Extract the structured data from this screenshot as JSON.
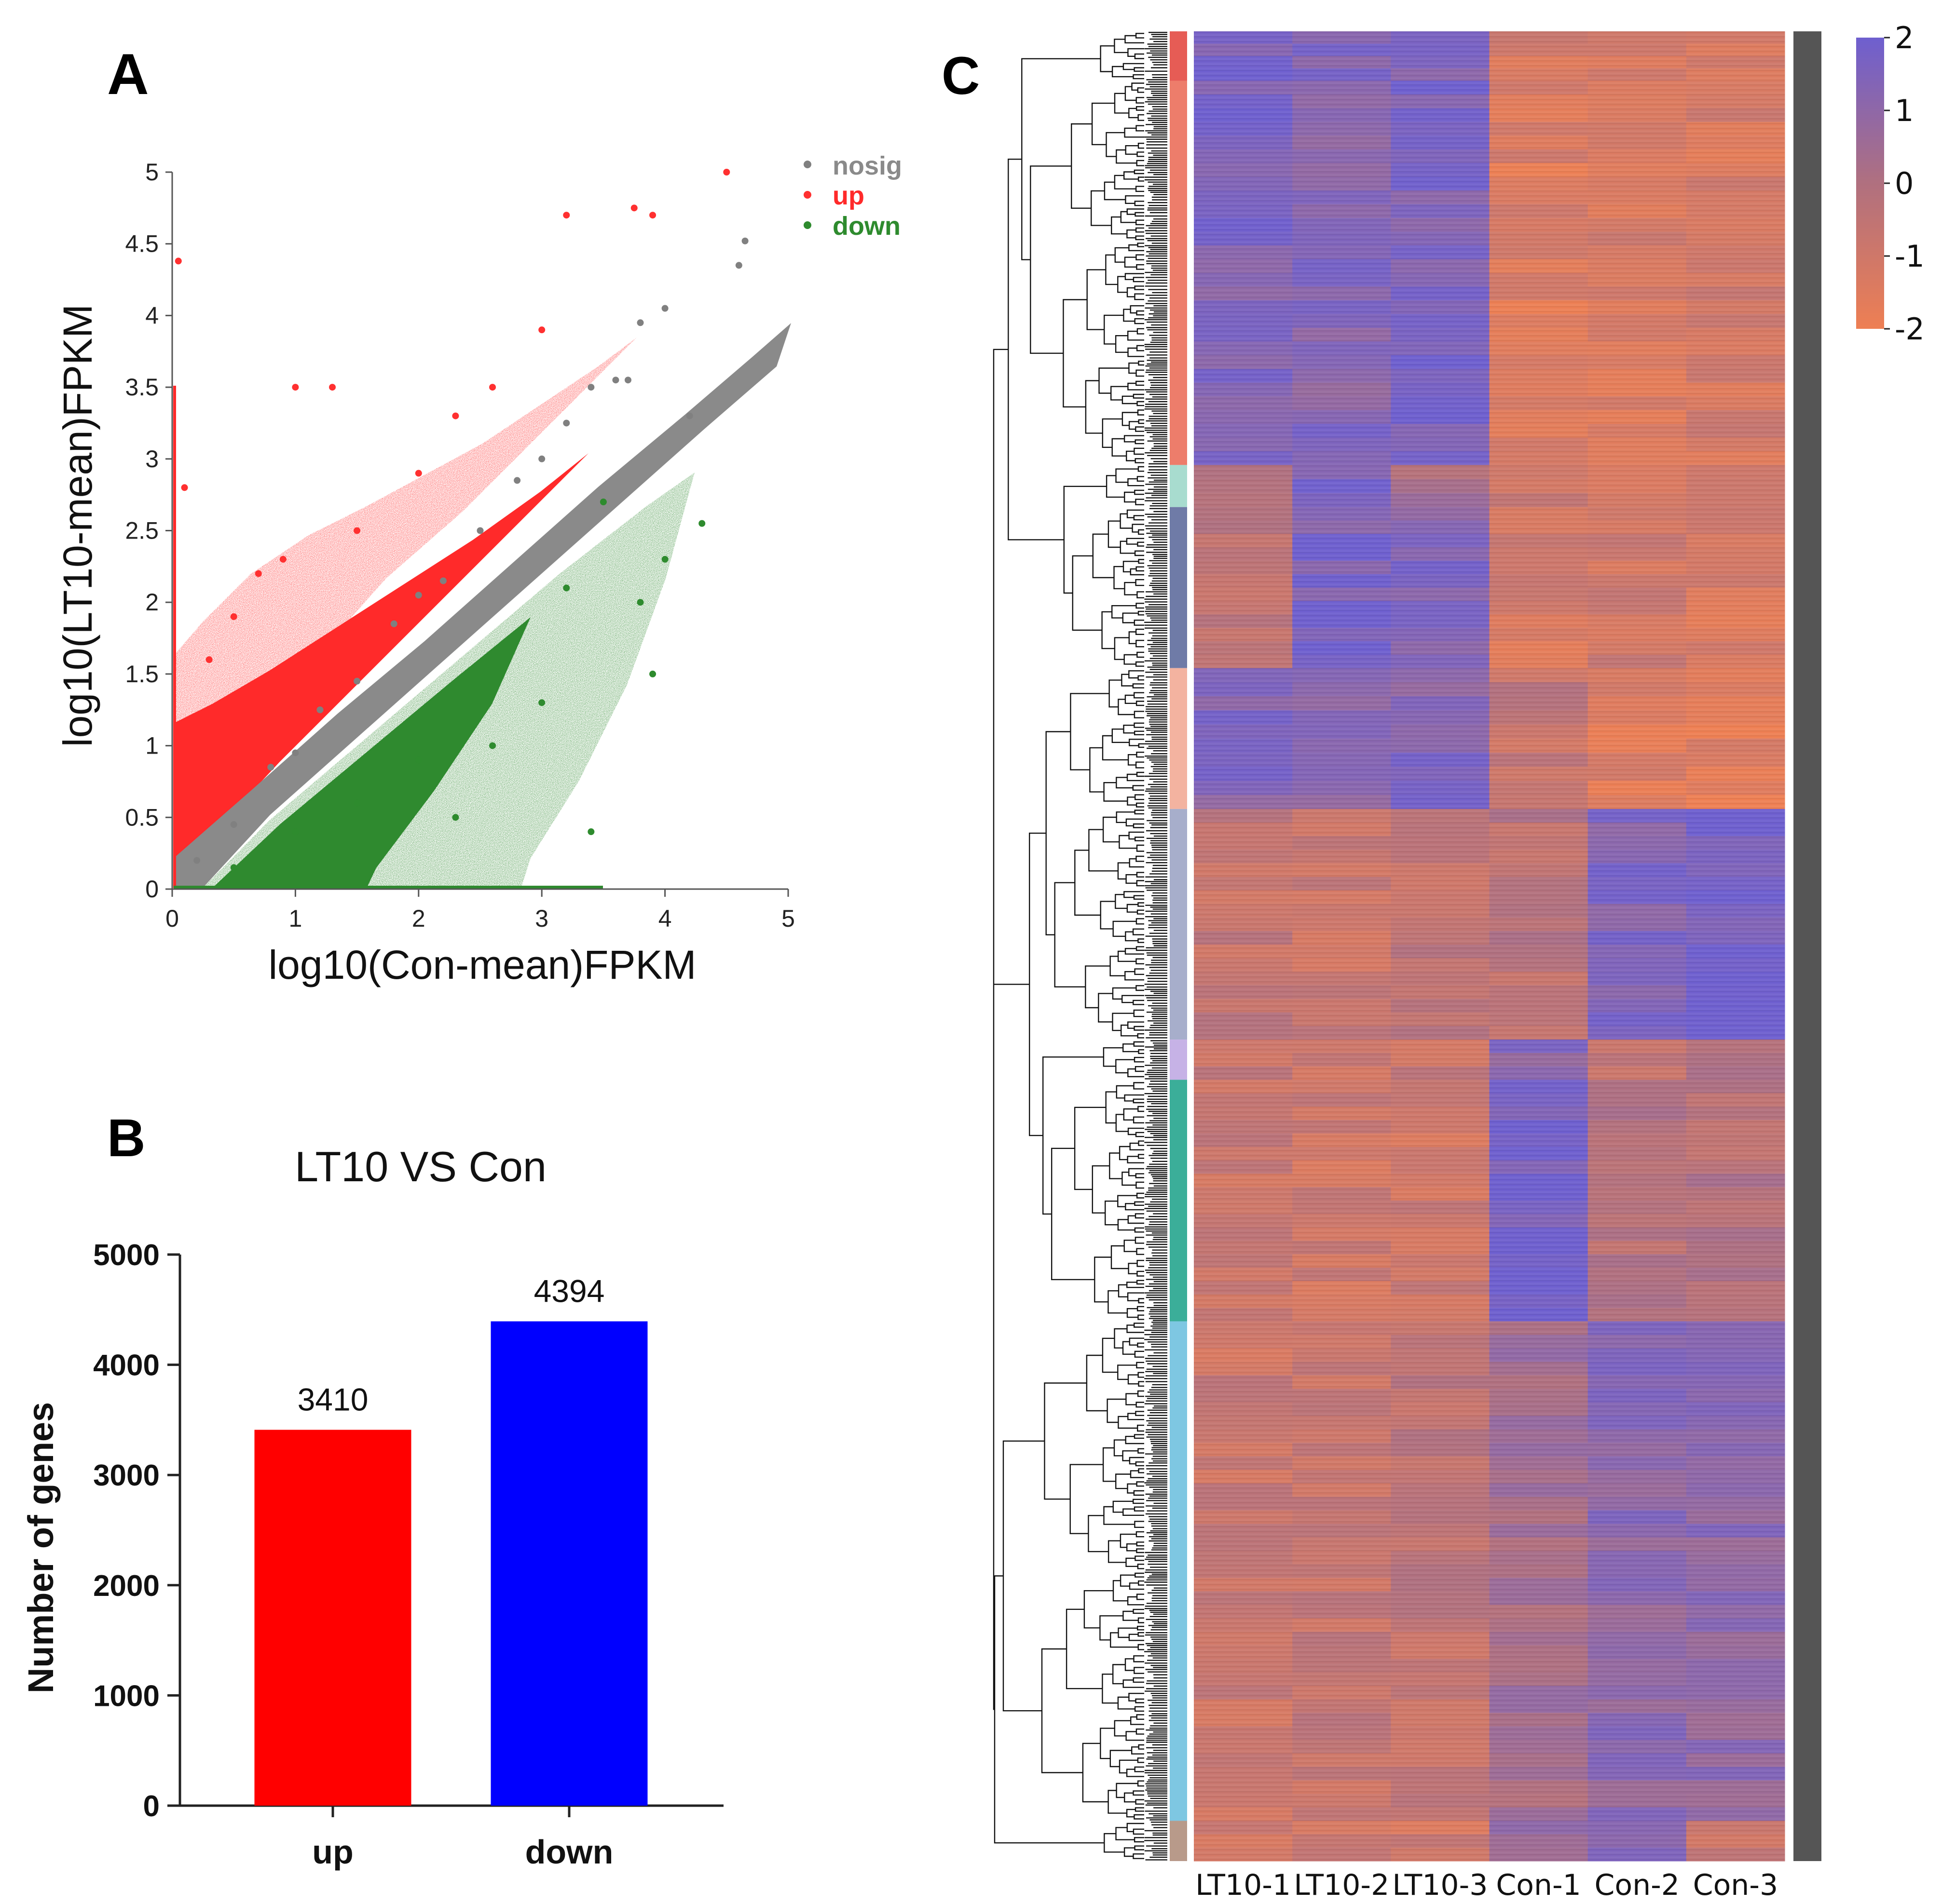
{
  "panels": {
    "A": {
      "letter": "A",
      "chart_data": {
        "type": "scatter",
        "xlabel": "log10(Con-mean)FPKM",
        "ylabel": "log10(LT10-mean)FPKM",
        "xlim": [
          0,
          5
        ],
        "ylim": [
          0,
          5
        ],
        "xticks": [
          "0",
          "1",
          "2",
          "3",
          "4",
          "5"
        ],
        "yticks": [
          "0",
          "0.5",
          "1",
          "1.5",
          "2",
          "2.5",
          "3",
          "3.5",
          "4",
          "4.5",
          "5"
        ],
        "legend_position": "top-right",
        "series": [
          {
            "name": "nosig",
            "color": "#808080",
            "points": [
              [
                0.2,
                0.2
              ],
              [
                0.5,
                0.45
              ],
              [
                0.8,
                0.85
              ],
              [
                1.0,
                0.95
              ],
              [
                1.2,
                1.25
              ],
              [
                1.5,
                1.45
              ],
              [
                1.8,
                1.85
              ],
              [
                2.0,
                2.05
              ],
              [
                2.2,
                2.15
              ],
              [
                2.5,
                2.5
              ],
              [
                2.8,
                2.85
              ],
              [
                3.0,
                3.0
              ],
              [
                3.2,
                3.25
              ],
              [
                3.4,
                3.5
              ],
              [
                3.6,
                3.55
              ],
              [
                3.8,
                3.95
              ],
              [
                4.0,
                4.05
              ],
              [
                4.6,
                4.35
              ],
              [
                4.65,
                4.52
              ],
              [
                4.2,
                3.3
              ],
              [
                3.7,
                3.55
              ]
            ]
          },
          {
            "name": "up",
            "color": "#ff3030",
            "points": [
              [
                0.05,
                4.38
              ],
              [
                0.1,
                2.8
              ],
              [
                0.3,
                1.6
              ],
              [
                0.5,
                1.9
              ],
              [
                0.7,
                2.2
              ],
              [
                0.9,
                2.3
              ],
              [
                1.0,
                3.5
              ],
              [
                1.3,
                3.5
              ],
              [
                1.5,
                2.5
              ],
              [
                2.0,
                2.9
              ],
              [
                2.3,
                3.3
              ],
              [
                2.6,
                3.5
              ],
              [
                3.0,
                3.9
              ],
              [
                3.2,
                4.7
              ],
              [
                3.75,
                4.75
              ],
              [
                3.9,
                4.7
              ],
              [
                4.5,
                5.0
              ]
            ]
          },
          {
            "name": "down",
            "color": "#2e8b2e",
            "points": [
              [
                0.5,
                0.15
              ],
              [
                1.0,
                0.4
              ],
              [
                1.5,
                0.6
              ],
              [
                2.0,
                0.9
              ],
              [
                2.3,
                0.5
              ],
              [
                2.6,
                1.0
              ],
              [
                3.0,
                1.3
              ],
              [
                3.2,
                2.1
              ],
              [
                3.4,
                0.4
              ],
              [
                3.5,
                2.7
              ],
              [
                3.8,
                2.0
              ],
              [
                3.9,
                1.5
              ],
              [
                4.0,
                2.3
              ],
              [
                4.3,
                2.55
              ]
            ]
          }
        ]
      }
    },
    "B": {
      "letter": "B",
      "chart_data": {
        "type": "bar",
        "title": "LT10 VS Con",
        "ylabel": "Number of genes",
        "categories": [
          "up",
          "down"
        ],
        "values": [
          3410,
          4394
        ],
        "value_labels": [
          "3410",
          "4394"
        ],
        "colors": [
          "#ff0000",
          "#0000ff"
        ],
        "ylim": [
          0,
          5000
        ],
        "yticks": [
          "0",
          "1000",
          "2000",
          "3000",
          "4000",
          "5000"
        ]
      }
    },
    "C": {
      "letter": "C",
      "chart_data": {
        "type": "heatmap",
        "columns": [
          "LT10-1",
          "LT10-2",
          "LT10-3",
          "Con-1",
          "Con-2",
          "Con-3"
        ],
        "color_scale": {
          "min": -2,
          "max": 2,
          "low_color": "#ee7f53",
          "mid_color": "#b0707f",
          "high_color": "#6e5fcf",
          "ticks": [
            "2",
            "1",
            "0",
            "-1",
            "-2"
          ]
        },
        "cluster_colors": [
          "#e65c55",
          "#ed7d6b",
          "#a8dccf",
          "#6f7ba7",
          "#f3b3a0",
          "#a7aecb",
          "#c6b2e6",
          "#3bae99",
          "#7ec7e2",
          "#b89a8a"
        ],
        "cluster_fractions": [
          0.027,
          0.21,
          0.023,
          0.088,
          0.077,
          0.126,
          0.022,
          0.132,
          0.273,
          0.022
        ],
        "block_values": [
          [
            1.6,
            1.4,
            1.5,
            -1.3,
            -1.2,
            -1.3
          ],
          [
            1.5,
            1.3,
            1.6,
            -1.4,
            -1.3,
            -1.2
          ],
          [
            -0.3,
            1.8,
            0.2,
            -1.0,
            -1.3,
            -0.8
          ],
          [
            -0.5,
            1.6,
            1.4,
            -1.2,
            -0.9,
            -1.3
          ],
          [
            1.3,
            1.2,
            1.3,
            -0.6,
            -1.4,
            -1.7
          ],
          [
            -0.6,
            -0.8,
            -0.5,
            -0.3,
            1.5,
            1.9
          ],
          [
            -0.7,
            -0.9,
            -0.8,
            1.3,
            -0.6,
            0.3
          ],
          [
            -0.8,
            -0.9,
            -0.9,
            1.9,
            -0.2,
            -0.1
          ],
          [
            -0.8,
            -0.6,
            -0.5,
            0.4,
            1.1,
            1.0
          ],
          [
            -0.9,
            -1.0,
            -1.0,
            0.8,
            1.6,
            -0.6
          ]
        ]
      }
    }
  }
}
